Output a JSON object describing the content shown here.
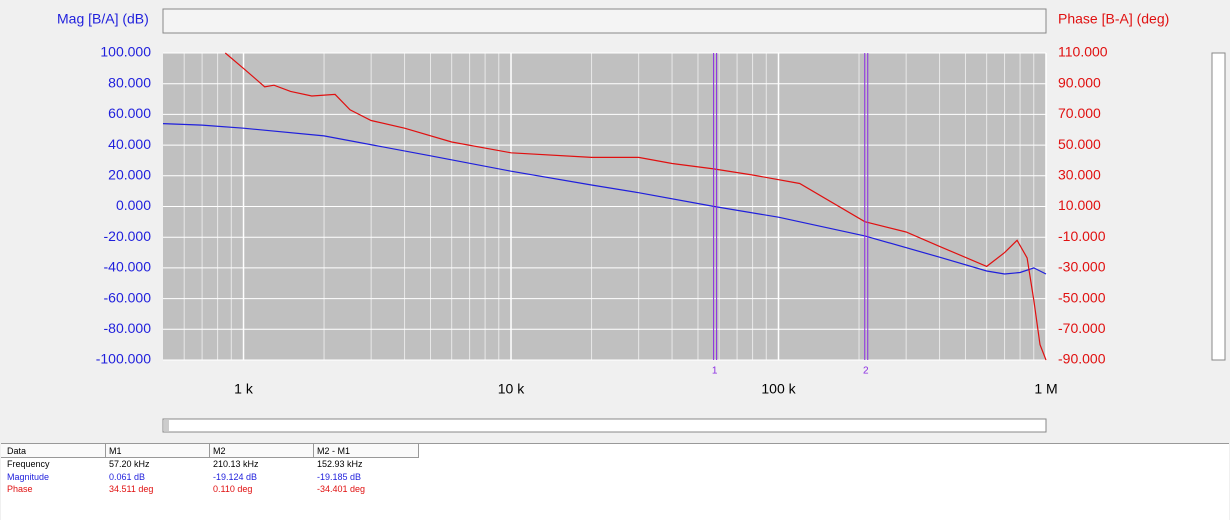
{
  "chart_data": {
    "type": "line",
    "xscale": "log",
    "grid": true,
    "ylabel": "Mag [B/A] (dB)",
    "y2label": "Phase [B-A] (deg)",
    "xlim": [
      500,
      1000000
    ],
    "xticks": [
      {
        "value": 1000,
        "label": "1 k"
      },
      {
        "value": 10000,
        "label": "10 k"
      },
      {
        "value": 100000,
        "label": "100 k"
      },
      {
        "value": 1000000,
        "label": "1 M"
      }
    ],
    "ylim": [
      -100,
      100
    ],
    "yticks": [
      {
        "value": -100,
        "label": "-100.000"
      },
      {
        "value": -80,
        "label": "-80.000"
      },
      {
        "value": -60,
        "label": "-60.000"
      },
      {
        "value": -40,
        "label": "-40.000"
      },
      {
        "value": -20,
        "label": "-20.000"
      },
      {
        "value": 0,
        "label": "0.000"
      },
      {
        "value": 20,
        "label": "20.000"
      },
      {
        "value": 40,
        "label": "40.000"
      },
      {
        "value": 60,
        "label": "60.000"
      },
      {
        "value": 80,
        "label": "80.000"
      },
      {
        "value": 100,
        "label": "100.000"
      }
    ],
    "y2lim": [
      -90,
      110
    ],
    "y2ticks": [
      {
        "value": -90,
        "label": "-90.000"
      },
      {
        "value": -70,
        "label": "-70.000"
      },
      {
        "value": -50,
        "label": "-50.000"
      },
      {
        "value": -30,
        "label": "-30.000"
      },
      {
        "value": -10,
        "label": "-10.000"
      },
      {
        "value": 10,
        "label": "10.000"
      },
      {
        "value": 30,
        "label": "30.000"
      },
      {
        "value": 50,
        "label": "50.000"
      },
      {
        "value": 70,
        "label": "70.000"
      },
      {
        "value": 90,
        "label": "90.000"
      },
      {
        "value": 110,
        "label": "110.000"
      }
    ],
    "series": [
      {
        "name": "Magnitude",
        "color": "#1f1fdc",
        "axis": "y",
        "x": [
          500,
          700,
          1000,
          2000,
          5000,
          10000,
          20000,
          30000,
          57200,
          100000,
          210130,
          400000,
          600000,
          700000,
          800000,
          900000,
          1000000
        ],
        "values": [
          54,
          53,
          51,
          46,
          33,
          23,
          14,
          9,
          0.061,
          -7,
          -19.124,
          -33,
          -42,
          -44,
          -43,
          -40,
          -44
        ]
      },
      {
        "name": "Phase",
        "color": "#e01010",
        "axis": "y2",
        "x": [
          855,
          1000,
          1200,
          1300,
          1500,
          1800,
          2200,
          2500,
          3000,
          4000,
          6000,
          10000,
          20000,
          30000,
          40000,
          57200,
          80000,
          120000,
          210130,
          300000,
          400000,
          600000,
          700000,
          780000,
          850000,
          900000,
          950000,
          1000000
        ],
        "values": [
          110,
          100,
          88,
          89,
          85,
          82,
          83,
          73,
          66,
          61,
          52,
          45,
          42,
          42,
          38,
          34.511,
          30.5,
          25,
          0.11,
          -6.6,
          -16,
          -29,
          -20,
          -12,
          -23.5,
          -51,
          -80,
          -90
        ]
      }
    ],
    "markers": [
      {
        "label": "1",
        "x": 57200
      },
      {
        "label": "2",
        "x": 210130
      }
    ]
  },
  "table": {
    "header": [
      "Data",
      "M1",
      "M2",
      "M2 - M1"
    ],
    "rows": [
      [
        "Frequency",
        "57.20 kHz",
        "210.13 kHz",
        "152.93 kHz"
      ],
      [
        "Magnitude",
        "0.061 dB",
        "-19.124 dB",
        "-19.185 dB"
      ],
      [
        "Phase",
        "34.511 deg",
        "0.110 deg",
        "-34.401 deg"
      ]
    ]
  }
}
